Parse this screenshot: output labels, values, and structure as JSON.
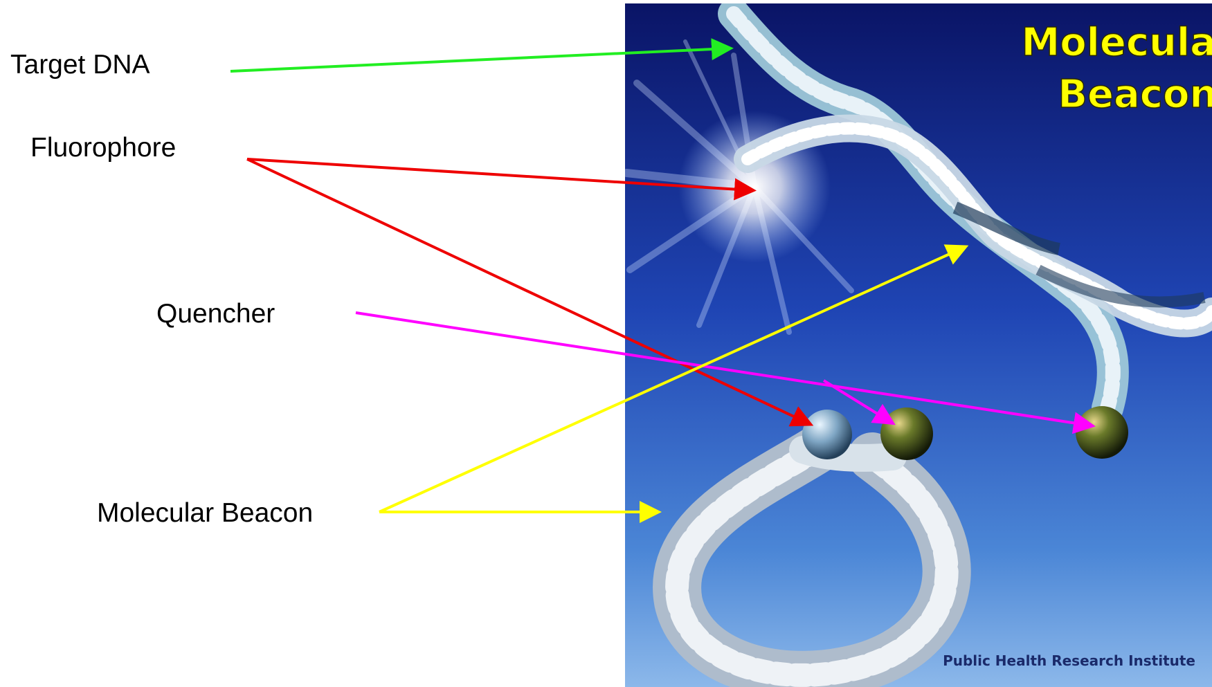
{
  "labels": {
    "target_dna": "Target DNA",
    "fluorophore": "Fluorophore",
    "quencher": "Quencher",
    "molecular_beacon": "Molecular Beacon"
  },
  "image": {
    "title_line1": "Molecular",
    "title_line2": "Beacons",
    "credit": "Public Health Research Institute"
  },
  "colors": {
    "target_dna_arrow": "#22ee22",
    "fluorophore_arrow": "#ee0000",
    "quencher_arrow": "#ff00ff",
    "molecular_beacon_arrow": "#ffff00",
    "title_text": "#ffff00",
    "credit_text": "#1a2a6a"
  }
}
